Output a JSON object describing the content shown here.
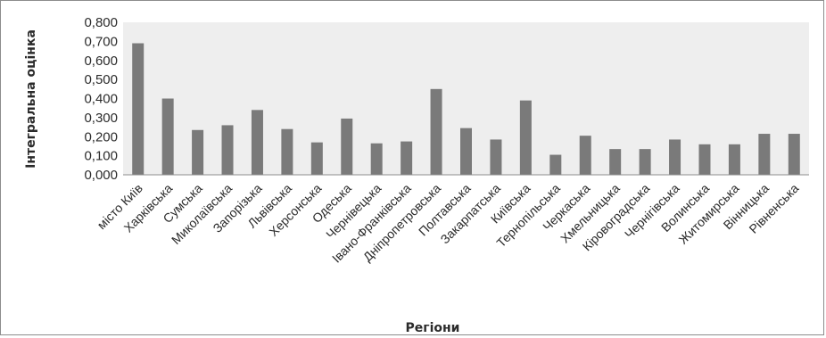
{
  "chart_data": {
    "type": "bar",
    "title": "",
    "xlabel": "Регіони",
    "ylabel": "Інтегральна оцінка",
    "ylim": [
      0,
      0.8
    ],
    "y_ticks": [
      "0,000",
      "0,100",
      "0,200",
      "0,300",
      "0,400",
      "0,500",
      "0,600",
      "0,700",
      "0,800"
    ],
    "grid": false,
    "legend": "none",
    "bar_color": "#7a7a7a",
    "plot_background": "#eeeeee",
    "categories": [
      "місто Київ",
      "Харківська",
      "Сумська",
      "Миколаївська",
      "Запорізька",
      "Львівська",
      "Херсонська",
      "Одеська",
      "Чернівецька",
      "Івано-Франківська",
      "Дніпропетровська",
      "Полтавська",
      "Закарпатська",
      "Київська",
      "Тернопільська",
      "Черкаська",
      "Хмельницька",
      "Кіровоградська",
      "Чернігівська",
      "Волинська",
      "Житомирська",
      "Вінницька",
      "Рівненська"
    ],
    "values": [
      0.69,
      0.4,
      0.235,
      0.26,
      0.34,
      0.24,
      0.17,
      0.295,
      0.165,
      0.175,
      0.45,
      0.245,
      0.185,
      0.39,
      0.105,
      0.205,
      0.135,
      0.135,
      0.185,
      0.16,
      0.16,
      0.215,
      0.215
    ]
  }
}
